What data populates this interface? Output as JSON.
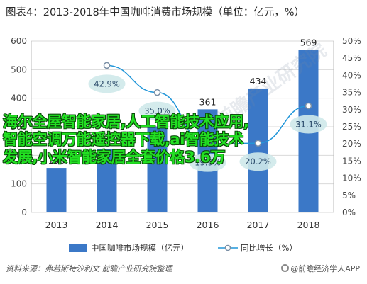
{
  "title": "图表4：2013-2018年中国咖啡消费市场规模（单位：亿元，%）",
  "chart_data": {
    "type": "bar",
    "categories": [
      "2013",
      "2014",
      "2015",
      "2016",
      "2017",
      "2018"
    ],
    "series": [
      {
        "name": "中国咖啡市场规模（亿元）",
        "type": "bar",
        "axis": "left",
        "values": [
          156,
          223,
          301,
          361,
          434,
          569
        ],
        "color": "#3b78c7"
      },
      {
        "name": "同比增长（%）",
        "type": "line",
        "axis": "right",
        "values": [
          null,
          42.9,
          35.0,
          19.9,
          20.2,
          31.1
        ],
        "color": "#2196d9"
      }
    ],
    "bar_labels": [
      "156",
      "223",
      "",
      "361",
      "434",
      "569"
    ],
    "line_labels": [
      "",
      "42.9%",
      "35.0%",
      "19.9%",
      "20.2%",
      "31.1%"
    ],
    "ylim_left": [
      0,
      600
    ],
    "ylim_right": [
      0,
      50
    ],
    "yticks_left": [
      "0",
      "100",
      "200",
      "300",
      "400",
      "500",
      "600"
    ],
    "yticks_right": [
      "0%",
      "5%",
      "10%",
      "15%",
      "20%",
      "25%",
      "30%",
      "35%",
      "40%",
      "45%",
      "50%"
    ],
    "grid": true,
    "legend_position": "bottom"
  },
  "legend": {
    "bar_label": "中国咖啡市场规模（亿元）",
    "line_label": "同比增长（%）"
  },
  "footer": {
    "source": "资料来源：弗若斯特沙利文 前瞻产业研究院整理",
    "brand": "@前瞻经济学人APP"
  },
  "watermark": "前瞻产业研究院",
  "overlay_text": [
    "海尔全屋智能家居,人工智能技术应用,",
    "智能空调万能遥控器下载,ai智能技术",
    "发展,小米智能家居全套价格3.6万"
  ]
}
